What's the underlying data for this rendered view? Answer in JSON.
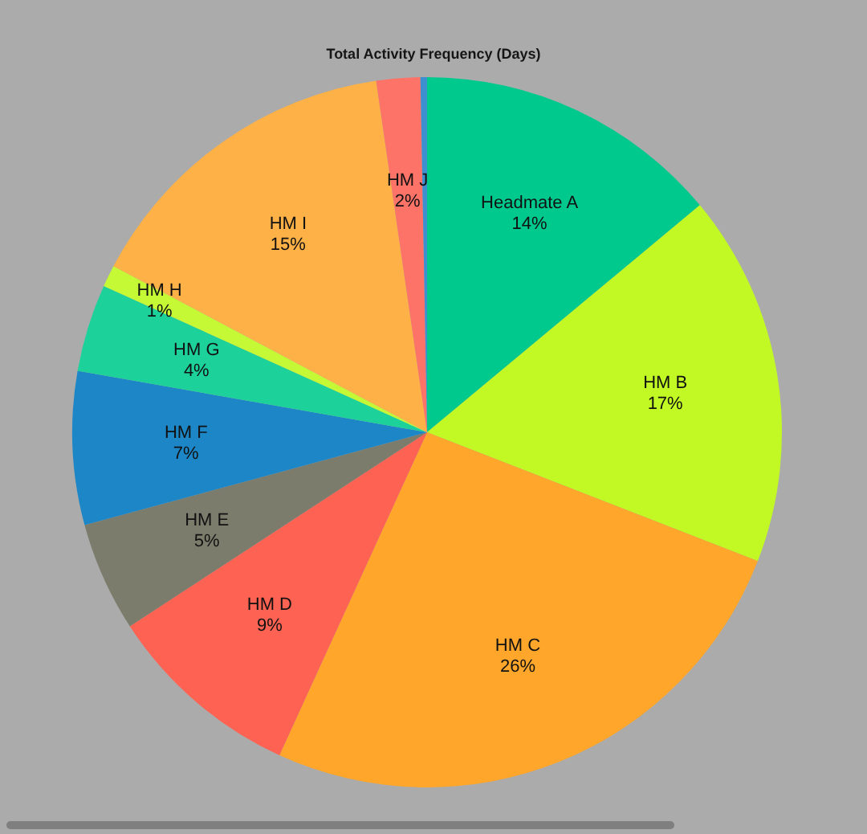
{
  "chart_data": {
    "type": "pie",
    "title": "Total Activity Frequency (Days)",
    "categories": [
      "Headmate A",
      "HM B",
      "HM C",
      "HM D",
      "HM E",
      "HM F",
      "HM G",
      "HM H",
      "HM I",
      "HM J",
      null
    ],
    "values": [
      14,
      17,
      26,
      9,
      5,
      7,
      4,
      1,
      15,
      2,
      0.3
    ],
    "value_labels": [
      "14%",
      "17%",
      "26%",
      "9%",
      "5%",
      "7%",
      "4%",
      "1%",
      "15%",
      "2%",
      null
    ],
    "colors": [
      "#00c98e",
      "#c2f924",
      "#ffa62b",
      "#fe6252",
      "#7b7c6b",
      "#1c86c6",
      "#1dd19b",
      "#c5f935",
      "#feb146",
      "#fd7367",
      "#3d8fd0"
    ]
  }
}
